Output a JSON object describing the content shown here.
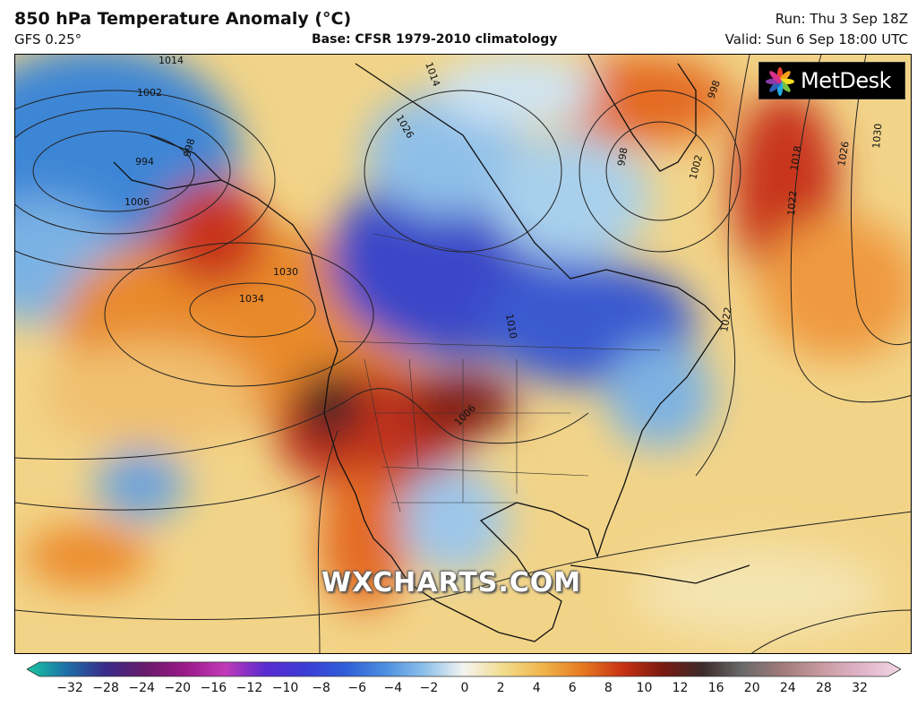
{
  "header": {
    "title": "850 hPa Temperature Anomaly (°C)",
    "model": "GFS 0.25°",
    "base": "Base: CFSR 1979-2010 climatology",
    "run": "Run: Thu 3 Sep 18Z",
    "valid": "Valid: Sun 6 Sep 18:00 UTC"
  },
  "logo": {
    "text": "MetDesk",
    "icon": "metdesk-burst-icon"
  },
  "watermark": "WXCHARTS.COM",
  "colorbar": {
    "ticks": [
      "−32",
      "−28",
      "−24",
      "−20",
      "−16",
      "−12",
      "−10",
      "−8",
      "−6",
      "−4",
      "−2",
      "0",
      "2",
      "4",
      "6",
      "8",
      "10",
      "12",
      "16",
      "20",
      "24",
      "28",
      "32"
    ],
    "colors": [
      "#19c8a0",
      "#1d6fa8",
      "#3a2a88",
      "#6a1a6a",
      "#9c1a8a",
      "#c03ab8",
      "#5a2bd0",
      "#3c3cd6",
      "#2f5ed8",
      "#4c8ee0",
      "#8cc0ea",
      "#f4f4f0",
      "#f2dc8c",
      "#f0b44a",
      "#e67820",
      "#c83214",
      "#7a1a10",
      "#3c2a2a",
      "#6a6a6a",
      "#a07a7a",
      "#c89aa0",
      "#e0b4c8",
      "#f2d6e4"
    ]
  },
  "isobar_labels": [
    "1014",
    "1002",
    "998",
    "994",
    "1006",
    "1030",
    "1034",
    "1026",
    "1014",
    "998",
    "1002",
    "998",
    "1018",
    "1026",
    "1030",
    "1022",
    "1022",
    "1010",
    "1006"
  ],
  "colors": {
    "frame": "#000000",
    "land_outline": "#111111",
    "isobar": "#222222"
  }
}
